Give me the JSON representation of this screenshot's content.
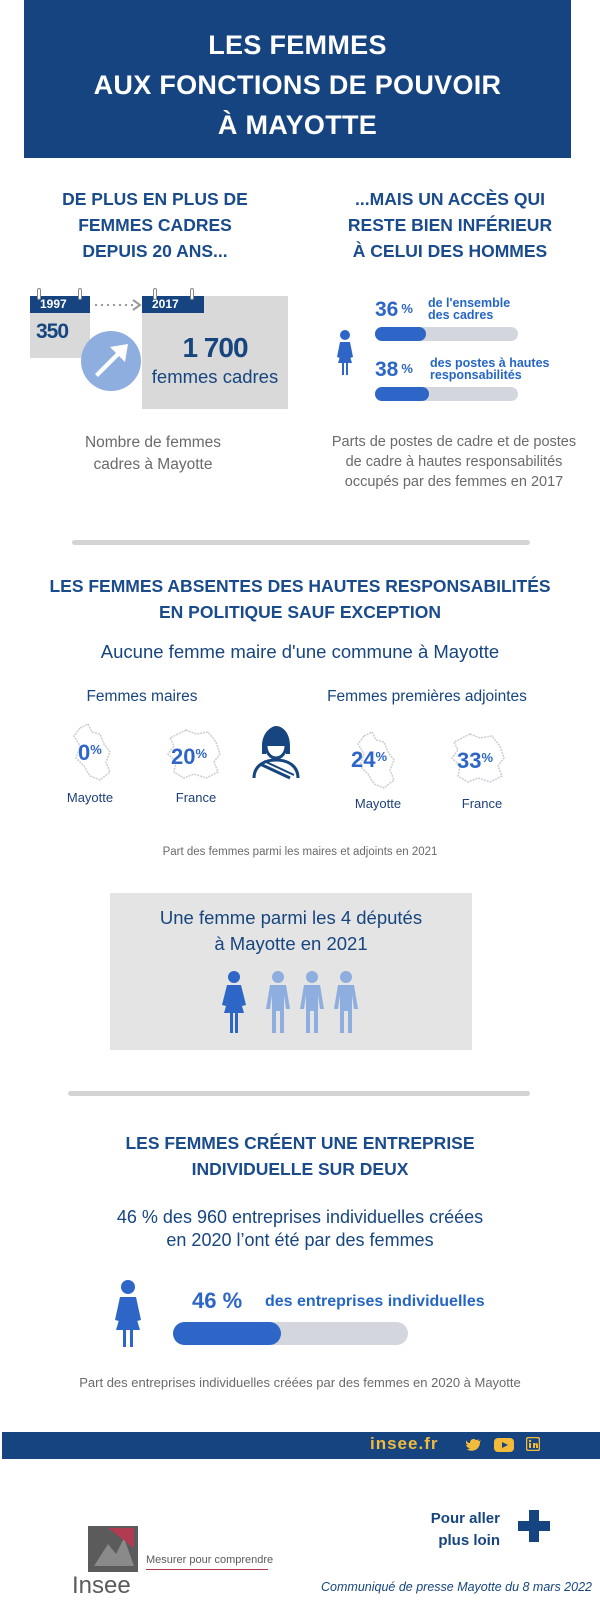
{
  "header": {
    "line1": "LES FEMMES",
    "line2": "AUX FONCTIONS DE POUVOIR",
    "line3": "À MAYOTTE"
  },
  "cadres": {
    "title_lines": [
      "DE PLUS EN PLUS DE",
      "FEMMES CADRES",
      "DEPUIS 20 ANS..."
    ],
    "year_start": "1997",
    "value_start": "350",
    "year_end": "2017",
    "value_end": "1 700",
    "value_end_unit": "femmes cadres",
    "caption_lines": [
      "Nombre de femmes",
      "cadres à Mayotte"
    ]
  },
  "acces": {
    "title_lines": [
      "...MAIS UN ACCÈS QUI",
      "RESTE BIEN INFÉRIEUR",
      "À CELUI DES HOMMES"
    ],
    "rows": [
      {
        "value": "36",
        "unit": "%",
        "label_line1": "de l'ensemble",
        "label_line2": "des cadres",
        "share": 0.36
      },
      {
        "value": "38",
        "unit": "%",
        "label_line1": "des postes à hautes",
        "label_line2": "responsabilités",
        "share": 0.38
      }
    ],
    "caption_lines": [
      "Parts de postes de cadre et de postes",
      "de cadre à hautes responsabilités",
      "occupés par des femmes en 2017"
    ]
  },
  "politique": {
    "title_lines": [
      "LES FEMMES ABSENTES DES HAUTES RESPONSABILITÉS",
      "EN POLITIQUE SAUF EXCEPTION"
    ],
    "subtitle": "Aucune femme maire d'une commune à Mayotte",
    "maires_label": "Femmes maires",
    "adjointes_label": "Femmes premières adjointes",
    "maires": [
      {
        "value": "0",
        "unit": "%",
        "place": "Mayotte"
      },
      {
        "value": "20",
        "unit": "%",
        "place": "France"
      }
    ],
    "adjointes": [
      {
        "value": "24",
        "unit": "%",
        "place": "Mayotte"
      },
      {
        "value": "33",
        "unit": "%",
        "place": "France"
      }
    ],
    "caption": "Part des femmes parmi les maires et adjoints en 2021",
    "deputes_lines": [
      "Une femme parmi les 4 députés",
      "à Mayotte en 2021"
    ]
  },
  "entreprise": {
    "title_lines": [
      "LES FEMMES CRÉENT UNE ENTREPRISE",
      "INDIVIDUELLE SUR DEUX"
    ],
    "subtitle_lines": [
      "46 % des 960 entreprises individuelles créées",
      "en 2020 l’ont été par des femmes"
    ],
    "value": "46 %",
    "label": "des entreprises individuelles",
    "share": 0.46,
    "caption": "Part des entreprises individuelles créées par des femmes en 2020 à Mayotte"
  },
  "footer": {
    "site": "insee.fr",
    "social_icons": [
      "twitter-icon",
      "youtube-icon",
      "linkedin-icon"
    ]
  },
  "bottom": {
    "more_line1": "Pour aller",
    "more_line2": "plus loin",
    "logo_text": "Insee",
    "tagline": "Mesurer pour comprendre",
    "communique": "Communiqué de presse Mayotte du 8 mars 2022"
  },
  "colors": {
    "navy": "#164480",
    "accent": "#2d66c6",
    "light": "#8eaee0",
    "gray_box": "#d9d9d9"
  }
}
